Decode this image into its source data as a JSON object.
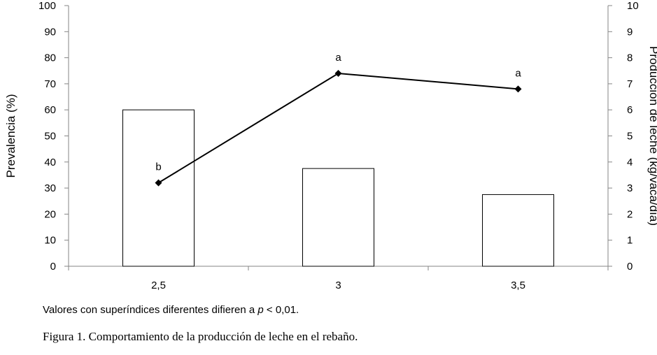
{
  "chart_data": {
    "type": "bar",
    "categories": [
      "2,5",
      "3",
      "3,5"
    ],
    "series": [
      {
        "type": "bar",
        "axis": "left",
        "values": [
          60,
          37.5,
          27.5
        ]
      },
      {
        "type": "line",
        "axis": "right",
        "values": [
          3.2,
          7.4,
          6.8
        ],
        "marker": "diamond",
        "point_labels": [
          "b",
          "a",
          "a"
        ]
      }
    ],
    "ylabel": "Prevalencia (%)",
    "ylim": [
      0,
      100
    ],
    "yticks": [
      "0",
      "10",
      "20",
      "30",
      "40",
      "50",
      "60",
      "70",
      "80",
      "90",
      "100"
    ],
    "y2label": "Producción de leche (kg/vaca/día)",
    "y2lim": [
      0,
      10
    ],
    "y2ticks": [
      "0",
      "1",
      "2",
      "3",
      "4",
      "5",
      "6",
      "7",
      "8",
      "9",
      "10"
    ],
    "grid": false,
    "legend": "none",
    "colors": {
      "bar_fill": "#ffffff",
      "bar_stroke": "#000000",
      "line": "#000000",
      "axis": "#868686"
    }
  },
  "footnote": {
    "prefix": "Valores con superíndices diferentes difieren a ",
    "p": "p",
    "suffix": " < 0,01."
  },
  "caption": "Figura 1. Comportamiento de la producción de leche en el rebaño."
}
